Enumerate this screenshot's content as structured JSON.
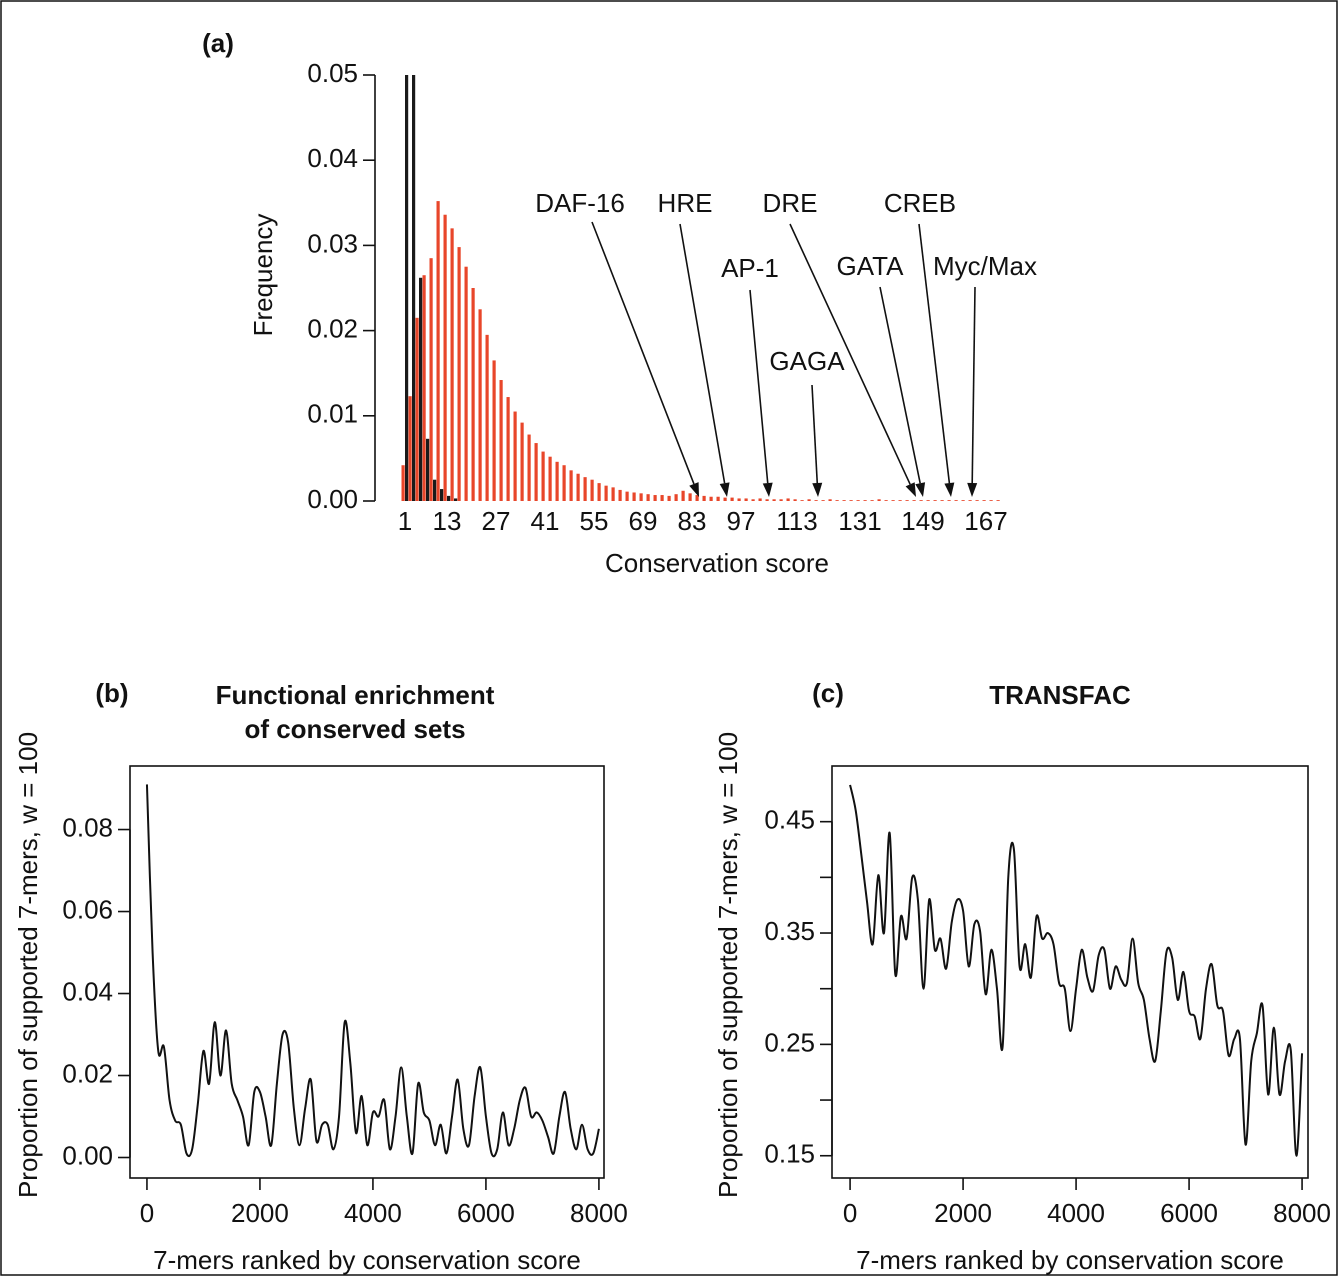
{
  "chart_data": [
    {
      "type": "bar",
      "panel": "(a)",
      "x": [
        1,
        3,
        5,
        7,
        9,
        11,
        13,
        15,
        17,
        19,
        21,
        23,
        25,
        27,
        29,
        31,
        33,
        35,
        37,
        39,
        41,
        43,
        45,
        47,
        49,
        51,
        53,
        55,
        57,
        59,
        61,
        63,
        65,
        67,
        69,
        71,
        73,
        75,
        77,
        79,
        81,
        83,
        85,
        87,
        89,
        91,
        93,
        95,
        97,
        99,
        101,
        103,
        105,
        107,
        109,
        111,
        113,
        115,
        117,
        119,
        121,
        123,
        125,
        127,
        129,
        131,
        133,
        135,
        137,
        139,
        141,
        143,
        145,
        147,
        149,
        151,
        153,
        155,
        157,
        159,
        161,
        163,
        165,
        167,
        169,
        171
      ],
      "series": [
        {
          "color": "#e8462a",
          "values": [
            0.0042,
            0.0123,
            0.0215,
            0.0265,
            0.0285,
            0.0352,
            0.0336,
            0.032,
            0.0298,
            0.0275,
            0.025,
            0.0225,
            0.0195,
            0.0165,
            0.0142,
            0.0122,
            0.0105,
            0.0092,
            0.0078,
            0.0068,
            0.0058,
            0.0052,
            0.0046,
            0.0042,
            0.0036,
            0.0032,
            0.0028,
            0.0025,
            0.0021,
            0.0018,
            0.0016,
            0.0013,
            0.0011,
            0.001,
            0.0009,
            0.0008,
            0.0007,
            0.0007,
            0.0006,
            0.0008,
            0.0012,
            0.0009,
            0.0007,
            0.0006,
            0.0005,
            0.0005,
            0.0004,
            0.0004,
            0.0003,
            0.0003,
            0.0002,
            0.0003,
            0.0002,
            0.0002,
            0.0002,
            0.0003,
            0.0002,
            0.0001,
            0.0002,
            0.0001,
            0.0001,
            0.0002,
            0.0001,
            0.0001,
            0.0001,
            0.0001,
            0.0001,
            0.0001,
            0.0002,
            0.0001,
            0.0001,
            0.0001,
            0.0001,
            0.0001,
            0.0001,
            0.0001,
            0.0001,
            0.0001,
            0.0001,
            0.0001,
            0.0001,
            0.0001,
            0.0001,
            0.0001,
            0.0001,
            0.0001
          ]
        },
        {
          "color": "#1a1a1a",
          "values": [
            0.05,
            0.05,
            0.0262,
            0.0073,
            0.0025,
            0.0014,
            0.0006,
            0.0003,
            0,
            0,
            0,
            0,
            0,
            0,
            0,
            0,
            0,
            0,
            0,
            0,
            0,
            0,
            0,
            0,
            0,
            0,
            0,
            0,
            0,
            0,
            0,
            0,
            0,
            0,
            0,
            0,
            0,
            0,
            0,
            0,
            0,
            0,
            0,
            0,
            0,
            0,
            0,
            0,
            0,
            0,
            0,
            0,
            0,
            0,
            0,
            0,
            0,
            0,
            0,
            0,
            0,
            0,
            0,
            0,
            0,
            0,
            0,
            0,
            0,
            0,
            0,
            0,
            0,
            0,
            0,
            0,
            0,
            0,
            0,
            0,
            0,
            0,
            0,
            0,
            0,
            0
          ]
        }
      ],
      "xlim": [
        -3,
        177
      ],
      "xticks": [
        1,
        13,
        27,
        41,
        55,
        69,
        83,
        97,
        113,
        131,
        149,
        167
      ],
      "ylim": [
        0,
        0.05
      ],
      "yticks": [
        {
          "value": 0,
          "label": "0.00"
        },
        0.01,
        0.02,
        0.03,
        0.04,
        0.05
      ],
      "xlabel": "Conservation score",
      "ylabel": "Frequency",
      "annotations": [
        {
          "text": "DAF-16",
          "x": 85
        },
        {
          "text": "HRE",
          "x": 93
        },
        {
          "text": "DRE",
          "x": 147
        },
        {
          "text": "CREB",
          "x": 157
        },
        {
          "text": "AP-1",
          "x": 105
        },
        {
          "text": "GATA",
          "x": 149
        },
        {
          "text": "Myc/Max",
          "x": 163
        },
        {
          "text": "GAGA",
          "x": 119
        }
      ]
    },
    {
      "type": "line",
      "panel": "(b)",
      "title": [
        "Functional enrichment",
        "of conserved sets"
      ],
      "x": [
        0,
        100,
        200,
        300,
        400,
        500,
        600,
        700,
        800,
        900,
        1000,
        1100,
        1200,
        1300,
        1400,
        1500,
        1600,
        1700,
        1800,
        1900,
        2000,
        2100,
        2200,
        2300,
        2400,
        2500,
        2600,
        2700,
        2800,
        2900,
        3000,
        3100,
        3200,
        3300,
        3400,
        3500,
        3600,
        3700,
        3800,
        3900,
        4000,
        4100,
        4200,
        4300,
        4400,
        4500,
        4600,
        4700,
        4800,
        4900,
        5000,
        5100,
        5200,
        5300,
        5400,
        5500,
        5600,
        5700,
        5800,
        5900,
        6000,
        6100,
        6200,
        6300,
        6400,
        6500,
        6600,
        6700,
        6800,
        6900,
        7000,
        7100,
        7200,
        7300,
        7400,
        7500,
        7600,
        7700,
        7800,
        7900,
        8000
      ],
      "values": [
        0.091,
        0.05,
        0.026,
        0.027,
        0.014,
        0.009,
        0.008,
        0.001,
        0.002,
        0.013,
        0.026,
        0.018,
        0.033,
        0.02,
        0.031,
        0.018,
        0.014,
        0.01,
        0.003,
        0.016,
        0.016,
        0.01,
        0.003,
        0.018,
        0.03,
        0.028,
        0.012,
        0.003,
        0.012,
        0.019,
        0.004,
        0.008,
        0.008,
        0.002,
        0.01,
        0.033,
        0.023,
        0.006,
        0.015,
        0.003,
        0.011,
        0.01,
        0.014,
        0.002,
        0.01,
        0.022,
        0.01,
        0.001,
        0.018,
        0.011,
        0.009,
        0.003,
        0.008,
        0.001,
        0.01,
        0.019,
        0.007,
        0.003,
        0.015,
        0.022,
        0.01,
        0.001,
        0.002,
        0.011,
        0.003,
        0.007,
        0.014,
        0.017,
        0.01,
        0.011,
        0.009,
        0.005,
        0.001,
        0.01,
        0.016,
        0.007,
        0.002,
        0.008,
        0.002,
        0.001,
        0.007
      ],
      "color": "#111111",
      "xlim": [
        -300,
        8090
      ],
      "xticks": [
        0,
        2000,
        4000,
        6000,
        8000
      ],
      "ylim": [
        -0.005,
        0.0955
      ],
      "yticks": [
        {
          "value": 0,
          "label": "0.00"
        },
        0.02,
        0.04,
        0.06,
        0.08
      ],
      "xlabel": "7-mers ranked by conservation score",
      "ylabel": "Proportion of supported 7-mers, w = 100"
    },
    {
      "type": "line",
      "panel": "(c)",
      "title": [
        "TRANSFAC"
      ],
      "x": [
        0,
        100,
        200,
        300,
        400,
        500,
        600,
        700,
        800,
        900,
        1000,
        1100,
        1200,
        1300,
        1400,
        1500,
        1600,
        1700,
        1800,
        1900,
        2000,
        2100,
        2200,
        2300,
        2400,
        2500,
        2600,
        2700,
        2800,
        2900,
        3000,
        3100,
        3200,
        3300,
        3400,
        3500,
        3600,
        3700,
        3800,
        3900,
        4000,
        4100,
        4200,
        4300,
        4400,
        4500,
        4600,
        4700,
        4800,
        4900,
        5000,
        5100,
        5200,
        5300,
        5400,
        5500,
        5600,
        5700,
        5800,
        5900,
        6000,
        6100,
        6200,
        6300,
        6400,
        6500,
        6600,
        6700,
        6800,
        6900,
        7000,
        7100,
        7200,
        7300,
        7400,
        7500,
        7600,
        7700,
        7800,
        7900,
        8000
      ],
      "values": [
        0.483,
        0.46,
        0.42,
        0.378,
        0.34,
        0.402,
        0.35,
        0.44,
        0.313,
        0.365,
        0.345,
        0.4,
        0.38,
        0.3,
        0.38,
        0.335,
        0.345,
        0.318,
        0.36,
        0.38,
        0.37,
        0.32,
        0.358,
        0.352,
        0.295,
        0.335,
        0.3,
        0.248,
        0.4,
        0.425,
        0.32,
        0.34,
        0.31,
        0.365,
        0.345,
        0.35,
        0.34,
        0.305,
        0.3,
        0.262,
        0.3,
        0.335,
        0.31,
        0.298,
        0.33,
        0.335,
        0.3,
        0.32,
        0.308,
        0.305,
        0.345,
        0.305,
        0.29,
        0.255,
        0.235,
        0.28,
        0.333,
        0.328,
        0.29,
        0.315,
        0.28,
        0.275,
        0.255,
        0.3,
        0.322,
        0.285,
        0.28,
        0.24,
        0.255,
        0.255,
        0.16,
        0.235,
        0.26,
        0.285,
        0.205,
        0.265,
        0.205,
        0.235,
        0.245,
        0.15,
        0.242
      ],
      "color": "#111111",
      "xlim": [
        -320,
        8105
      ],
      "xticks": [
        0,
        2000,
        4000,
        6000,
        8000
      ],
      "ylim": [
        0.13,
        0.5
      ],
      "yticks": [
        0.15,
        0.25,
        0.35,
        0.45
      ],
      "yminorticks": [
        0.2,
        0.3,
        0.4
      ],
      "xlabel": "7-mers ranked by conservation score",
      "ylabel": "Proportion of supported 7-mers, w = 100"
    }
  ]
}
